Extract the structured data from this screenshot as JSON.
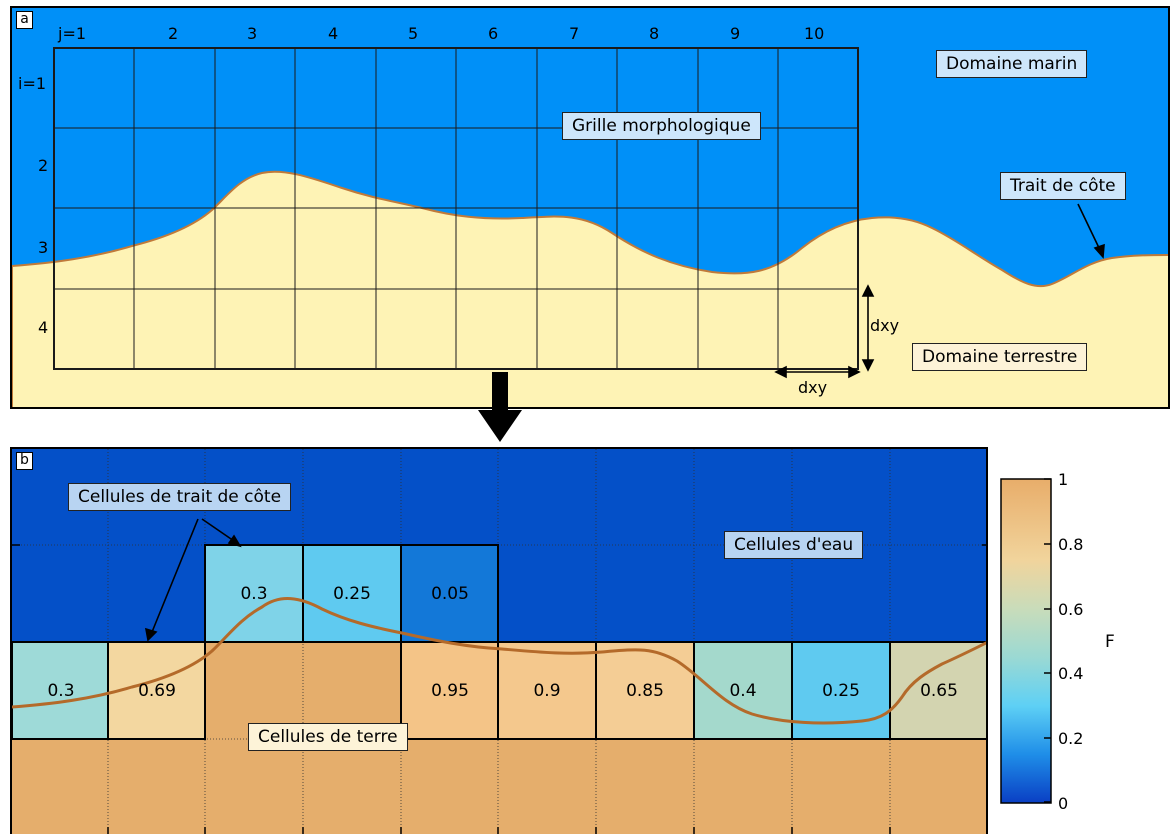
{
  "panel_a": {
    "tag": "a",
    "col_labels": [
      "j=1",
      "2",
      "3",
      "4",
      "5",
      "6",
      "7",
      "8",
      "9",
      "10"
    ],
    "row_labels": [
      "i=1",
      "2",
      "3",
      "4"
    ],
    "grid_label": "Grille morphologique",
    "sea_label": "Domaine marin",
    "land_label": "Domaine terrestre",
    "coast_label": "Trait de côte",
    "dxy_v": "dxy",
    "dxy_h": "dxy",
    "colors": {
      "sea": "#0090f8",
      "land": "#fef3b5",
      "coast_line": "#c07a3a"
    }
  },
  "panel_b": {
    "tag": "b",
    "coast_cells_label": "Cellules de trait de côte",
    "water_cells_label": "Cellules d'eau",
    "land_cells_label": "Cellules de terre",
    "row2_values": [
      {
        "col": 3,
        "value": "0.3"
      },
      {
        "col": 4,
        "value": "0.25"
      },
      {
        "col": 5,
        "value": "0.05"
      }
    ],
    "row3_values": [
      {
        "col": 1,
        "value": "0.3"
      },
      {
        "col": 2,
        "value": "0.69"
      },
      {
        "col": 5,
        "value": "0.95"
      },
      {
        "col": 6,
        "value": "0.9"
      },
      {
        "col": 7,
        "value": "0.85"
      },
      {
        "col": 8,
        "value": "0.4"
      },
      {
        "col": 9,
        "value": "0.25"
      },
      {
        "col": 10,
        "value": "0.65"
      }
    ],
    "colors": {
      "water": "#0450c8",
      "land": "#e5ae6c",
      "coast_line": "#b46a2a"
    }
  },
  "colorbar": {
    "label": "F",
    "ticks": [
      "1",
      "0.8",
      "0.6",
      "0.4",
      "0.2",
      "0"
    ],
    "min": 0,
    "max": 1
  }
}
